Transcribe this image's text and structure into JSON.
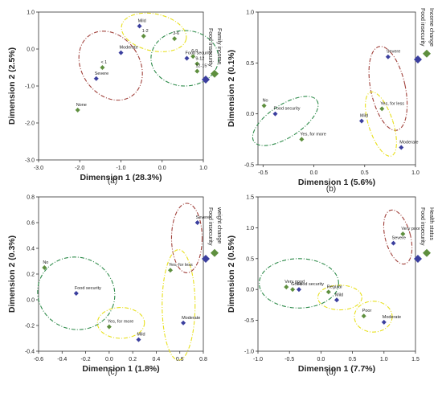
{
  "colors": {
    "food_marker": "#3b3f9e",
    "other_marker": "#5e8f3e",
    "ellipse_red": "#a0403a",
    "ellipse_yellow": "#e8e01c",
    "ellipse_green": "#2e8b4a",
    "axis": "#333333"
  },
  "legend_placement": "right (vertical text)",
  "chart_data": [
    {
      "type": "scatter",
      "caption": "(a)",
      "xlabel": "Dimension  1 (28.3%)",
      "ylabel": "Dimension  2 (2.5%)",
      "xlim": [
        -3.0,
        1.0
      ],
      "ylim": [
        -3.0,
        1.0
      ],
      "xticks": [
        "-3.0",
        "-2.0",
        "-1.0",
        "0.0",
        "1.0"
      ],
      "yticks": [
        "1.0",
        "0.0",
        "-1.0",
        "-2.0",
        "-3.0"
      ],
      "xtick_values": [
        -3,
        -2,
        -1,
        0,
        1
      ],
      "ytick_values": [
        1,
        0,
        -1,
        -2,
        -3
      ],
      "legend": [
        "Food Insecurity",
        "Family income"
      ],
      "series": [
        {
          "name": "Food Insecurity",
          "points": [
            {
              "label": "Mild",
              "x": -0.55,
              "y": 0.62
            },
            {
              "label": "Moderate",
              "x": -1.0,
              "y": -0.1
            },
            {
              "label": "Severe",
              "x": -1.6,
              "y": -0.8
            },
            {
              "label": "Food security",
              "x": 0.6,
              "y": -0.25
            }
          ]
        },
        {
          "name": "Family income",
          "points": [
            {
              "label": "1-2",
              "x": -0.45,
              "y": 0.35
            },
            {
              "label": "3-6",
              "x": 0.3,
              "y": 0.28
            },
            {
              "label": "6-9",
              "x": 0.75,
              "y": -0.2
            },
            {
              "label": "9-12",
              "x": 0.85,
              "y": -0.4
            },
            {
              "label": "12-15",
              "x": 0.85,
              "y": -0.6
            },
            {
              "label": "< 1",
              "x": -1.45,
              "y": -0.5
            },
            {
              "label": "None",
              "x": -2.05,
              "y": -1.65
            }
          ]
        }
      ],
      "ellipses": [
        {
          "color": "yellow",
          "cx": -0.2,
          "cy": 0.45,
          "rx": 0.8,
          "ry": 0.5,
          "angle": -12
        },
        {
          "color": "red",
          "cx": -1.25,
          "cy": -0.45,
          "rx": 0.7,
          "ry": 1.0,
          "angle": 35
        },
        {
          "color": "green",
          "cx": 0.55,
          "cy": -0.25,
          "rx": 0.82,
          "ry": 0.75,
          "angle": 0
        }
      ]
    },
    {
      "type": "scatter",
      "caption": "(b)",
      "xlabel": "Dimension  1 (5.6%)",
      "ylabel": "Dimension  2 (0.1%)",
      "xlim": [
        -0.55,
        1.0
      ],
      "ylim": [
        -0.5,
        1.0
      ],
      "xticks": [
        "-0.5",
        "0.0",
        "0.5",
        "1.0"
      ],
      "yticks": [
        "1.0",
        "0.5",
        "0.0",
        "-0.5"
      ],
      "xtick_values": [
        -0.5,
        0,
        0.5,
        1.0
      ],
      "ytick_values": [
        1.0,
        0.5,
        0,
        -0.5
      ],
      "legend": [
        "Food insecurity",
        "Income change"
      ],
      "series": [
        {
          "name": "Food insecurity",
          "points": [
            {
              "label": "Food security",
              "x": -0.38,
              "y": 0.0
            },
            {
              "label": "Severe",
              "x": 0.73,
              "y": 0.56
            },
            {
              "label": "Mild",
              "x": 0.47,
              "y": -0.07
            },
            {
              "label": "Moderate",
              "x": 0.86,
              "y": -0.33
            }
          ]
        },
        {
          "name": "Income change",
          "points": [
            {
              "label": "No",
              "x": -0.49,
              "y": 0.08
            },
            {
              "label": "Yes, for less",
              "x": 0.67,
              "y": 0.05
            },
            {
              "label": "Yes, for more",
              "x": -0.12,
              "y": -0.25
            }
          ]
        }
      ],
      "ellipses": [
        {
          "color": "green",
          "cx": -0.28,
          "cy": -0.07,
          "rx": 0.37,
          "ry": 0.16,
          "angle": 33
        },
        {
          "color": "red",
          "cx": 0.73,
          "cy": 0.25,
          "rx": 0.17,
          "ry": 0.42,
          "angle": 12
        },
        {
          "color": "yellow",
          "cx": 0.66,
          "cy": -0.1,
          "rx": 0.12,
          "ry": 0.33,
          "angle": 18
        }
      ]
    },
    {
      "type": "scatter",
      "caption": "(c)",
      "xlabel": "Dimension  1 (1.8%)",
      "ylabel": "Dimension  2 (0.3%)",
      "xlim": [
        -0.6,
        0.8
      ],
      "ylim": [
        -0.4,
        0.8
      ],
      "xticks": [
        "-0.6",
        "-0.4",
        "-0.2",
        "0.0",
        "0.2",
        "0.4",
        "0.6",
        "0.8"
      ],
      "yticks": [
        "0.8",
        "0.6",
        "0.4",
        "0.2",
        "0.0",
        "-0.2",
        "-0.4"
      ],
      "xtick_values": [
        -0.6,
        -0.4,
        -0.2,
        0,
        0.2,
        0.4,
        0.6,
        0.8
      ],
      "ytick_values": [
        0.8,
        0.6,
        0.4,
        0.2,
        0,
        -0.2,
        -0.4
      ],
      "legend": [
        "Food insecurity",
        "weight change"
      ],
      "series": [
        {
          "name": "Food insecurity",
          "points": [
            {
              "label": "Food security",
              "x": -0.28,
              "y": 0.05
            },
            {
              "label": "Severe",
              "x": 0.75,
              "y": 0.6
            },
            {
              "label": "Mild",
              "x": 0.25,
              "y": -0.31
            },
            {
              "label": "Moderate",
              "x": 0.63,
              "y": -0.18
            }
          ]
        },
        {
          "name": "weight change",
          "points": [
            {
              "label": "No",
              "x": -0.55,
              "y": 0.25
            },
            {
              "label": "Yes, for less",
              "x": 0.52,
              "y": 0.23
            },
            {
              "label": "Yes, for more",
              "x": 0.0,
              "y": -0.21
            }
          ]
        }
      ],
      "ellipses": [
        {
          "color": "green",
          "cx": -0.28,
          "cy": 0.05,
          "rx": 0.33,
          "ry": 0.28,
          "angle": -18
        },
        {
          "color": "yellow",
          "cx": 0.1,
          "cy": -0.18,
          "rx": 0.2,
          "ry": 0.12,
          "angle": 0
        },
        {
          "color": "red",
          "cx": 0.66,
          "cy": 0.48,
          "rx": 0.13,
          "ry": 0.27,
          "angle": 0
        },
        {
          "color": "yellow",
          "cx": 0.59,
          "cy": -0.04,
          "rx": 0.14,
          "ry": 0.43,
          "angle": 0
        }
      ]
    },
    {
      "type": "scatter",
      "caption": "(d)",
      "xlabel": "Dimension  1 (7.7%)",
      "ylabel": "Dimension  2 (0.5%)",
      "xlim": [
        -1.0,
        1.5
      ],
      "ylim": [
        -1.0,
        1.5
      ],
      "xticks": [
        "-1.0",
        "-0.5",
        "0.0",
        "0.5",
        "1.0",
        "1.5"
      ],
      "yticks": [
        "1.5",
        "1.0",
        "0.5",
        "0.0",
        "-0.5",
        "-1.0"
      ],
      "xtick_values": [
        -1,
        -0.5,
        0,
        0.5,
        1.0,
        1.5
      ],
      "ytick_values": [
        1.5,
        1.0,
        0.5,
        0,
        -0.5,
        -1.0
      ],
      "legend": [
        "Food insecurity",
        "Health status"
      ],
      "series": [
        {
          "name": "Food insecurity",
          "points": [
            {
              "label": "Food security",
              "x": -0.35,
              "y": 0.0
            },
            {
              "label": "Mild",
              "x": 0.25,
              "y": -0.17
            },
            {
              "label": "Moderate",
              "x": 1.0,
              "y": -0.53
            },
            {
              "label": "Severe",
              "x": 1.15,
              "y": 0.75
            }
          ]
        },
        {
          "name": "Health status",
          "points": [
            {
              "label": "Very good",
              "x": -0.55,
              "y": 0.04
            },
            {
              "label": "Good",
              "x": -0.45,
              "y": 0.0
            },
            {
              "label": "Regular",
              "x": 0.12,
              "y": -0.04
            },
            {
              "label": "Poor",
              "x": 0.68,
              "y": -0.43
            },
            {
              "label": "Very poor",
              "x": 1.3,
              "y": 0.9
            }
          ]
        }
      ],
      "ellipses": [
        {
          "color": "green",
          "cx": -0.35,
          "cy": 0.1,
          "rx": 0.63,
          "ry": 0.4,
          "angle": 0
        },
        {
          "color": "yellow",
          "cx": 0.3,
          "cy": -0.13,
          "rx": 0.35,
          "ry": 0.2,
          "angle": 0
        },
        {
          "color": "yellow",
          "cx": 0.83,
          "cy": -0.44,
          "rx": 0.3,
          "ry": 0.25,
          "angle": 0
        },
        {
          "color": "red",
          "cx": 1.22,
          "cy": 0.85,
          "rx": 0.2,
          "ry": 0.45,
          "angle": 15
        }
      ]
    }
  ]
}
